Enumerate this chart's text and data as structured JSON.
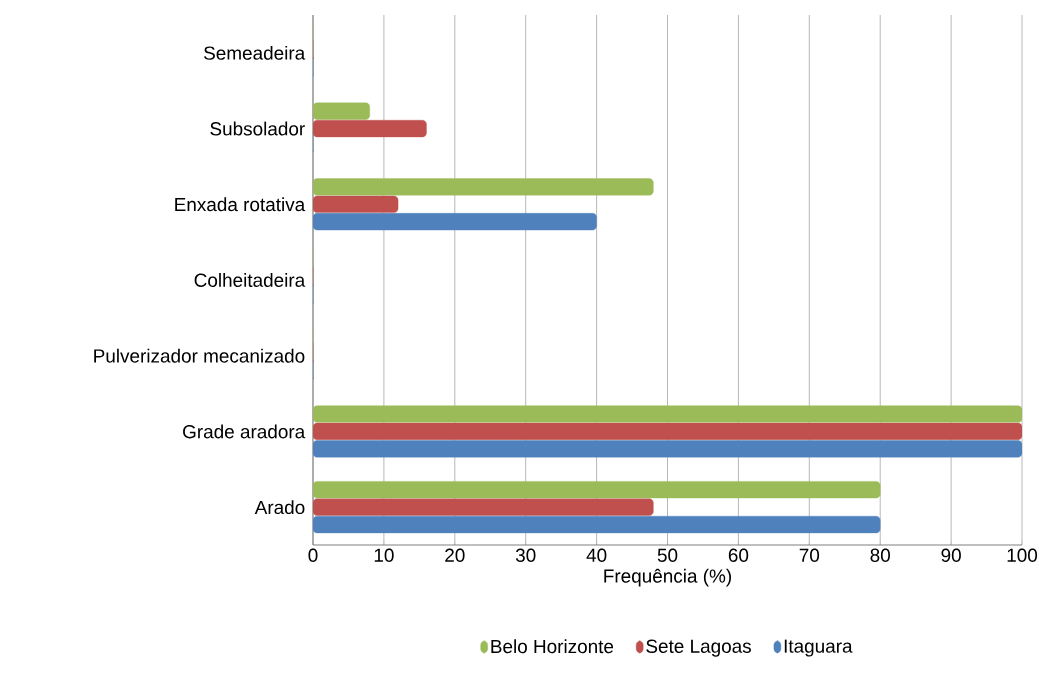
{
  "chart_data": {
    "type": "bar",
    "orientation": "horizontal",
    "xlabel": "Frequência (%)",
    "categories": [
      "Semeadeira",
      "Subsolador",
      "Enxada rotativa",
      "Colheitadeira",
      "Pulverizador mecanizado",
      "Grade aradora",
      "Arado"
    ],
    "series": [
      {
        "name": "Belo Horizonte",
        "color": "#9bbb59",
        "values": [
          0,
          8,
          48,
          0,
          0,
          100,
          80
        ]
      },
      {
        "name": "Sete Lagoas",
        "color": "#c0504d",
        "values": [
          0,
          16,
          12,
          0,
          0,
          100,
          48
        ]
      },
      {
        "name": "Itaguara",
        "color": "#4f81bd",
        "values": [
          0,
          0,
          40,
          0,
          0,
          100,
          80
        ]
      }
    ],
    "xlim": [
      0,
      100
    ],
    "xticks": [
      0,
      10,
      20,
      30,
      40,
      50,
      60,
      70,
      80,
      90,
      100
    ],
    "grid": "x",
    "legend": "bottom"
  }
}
